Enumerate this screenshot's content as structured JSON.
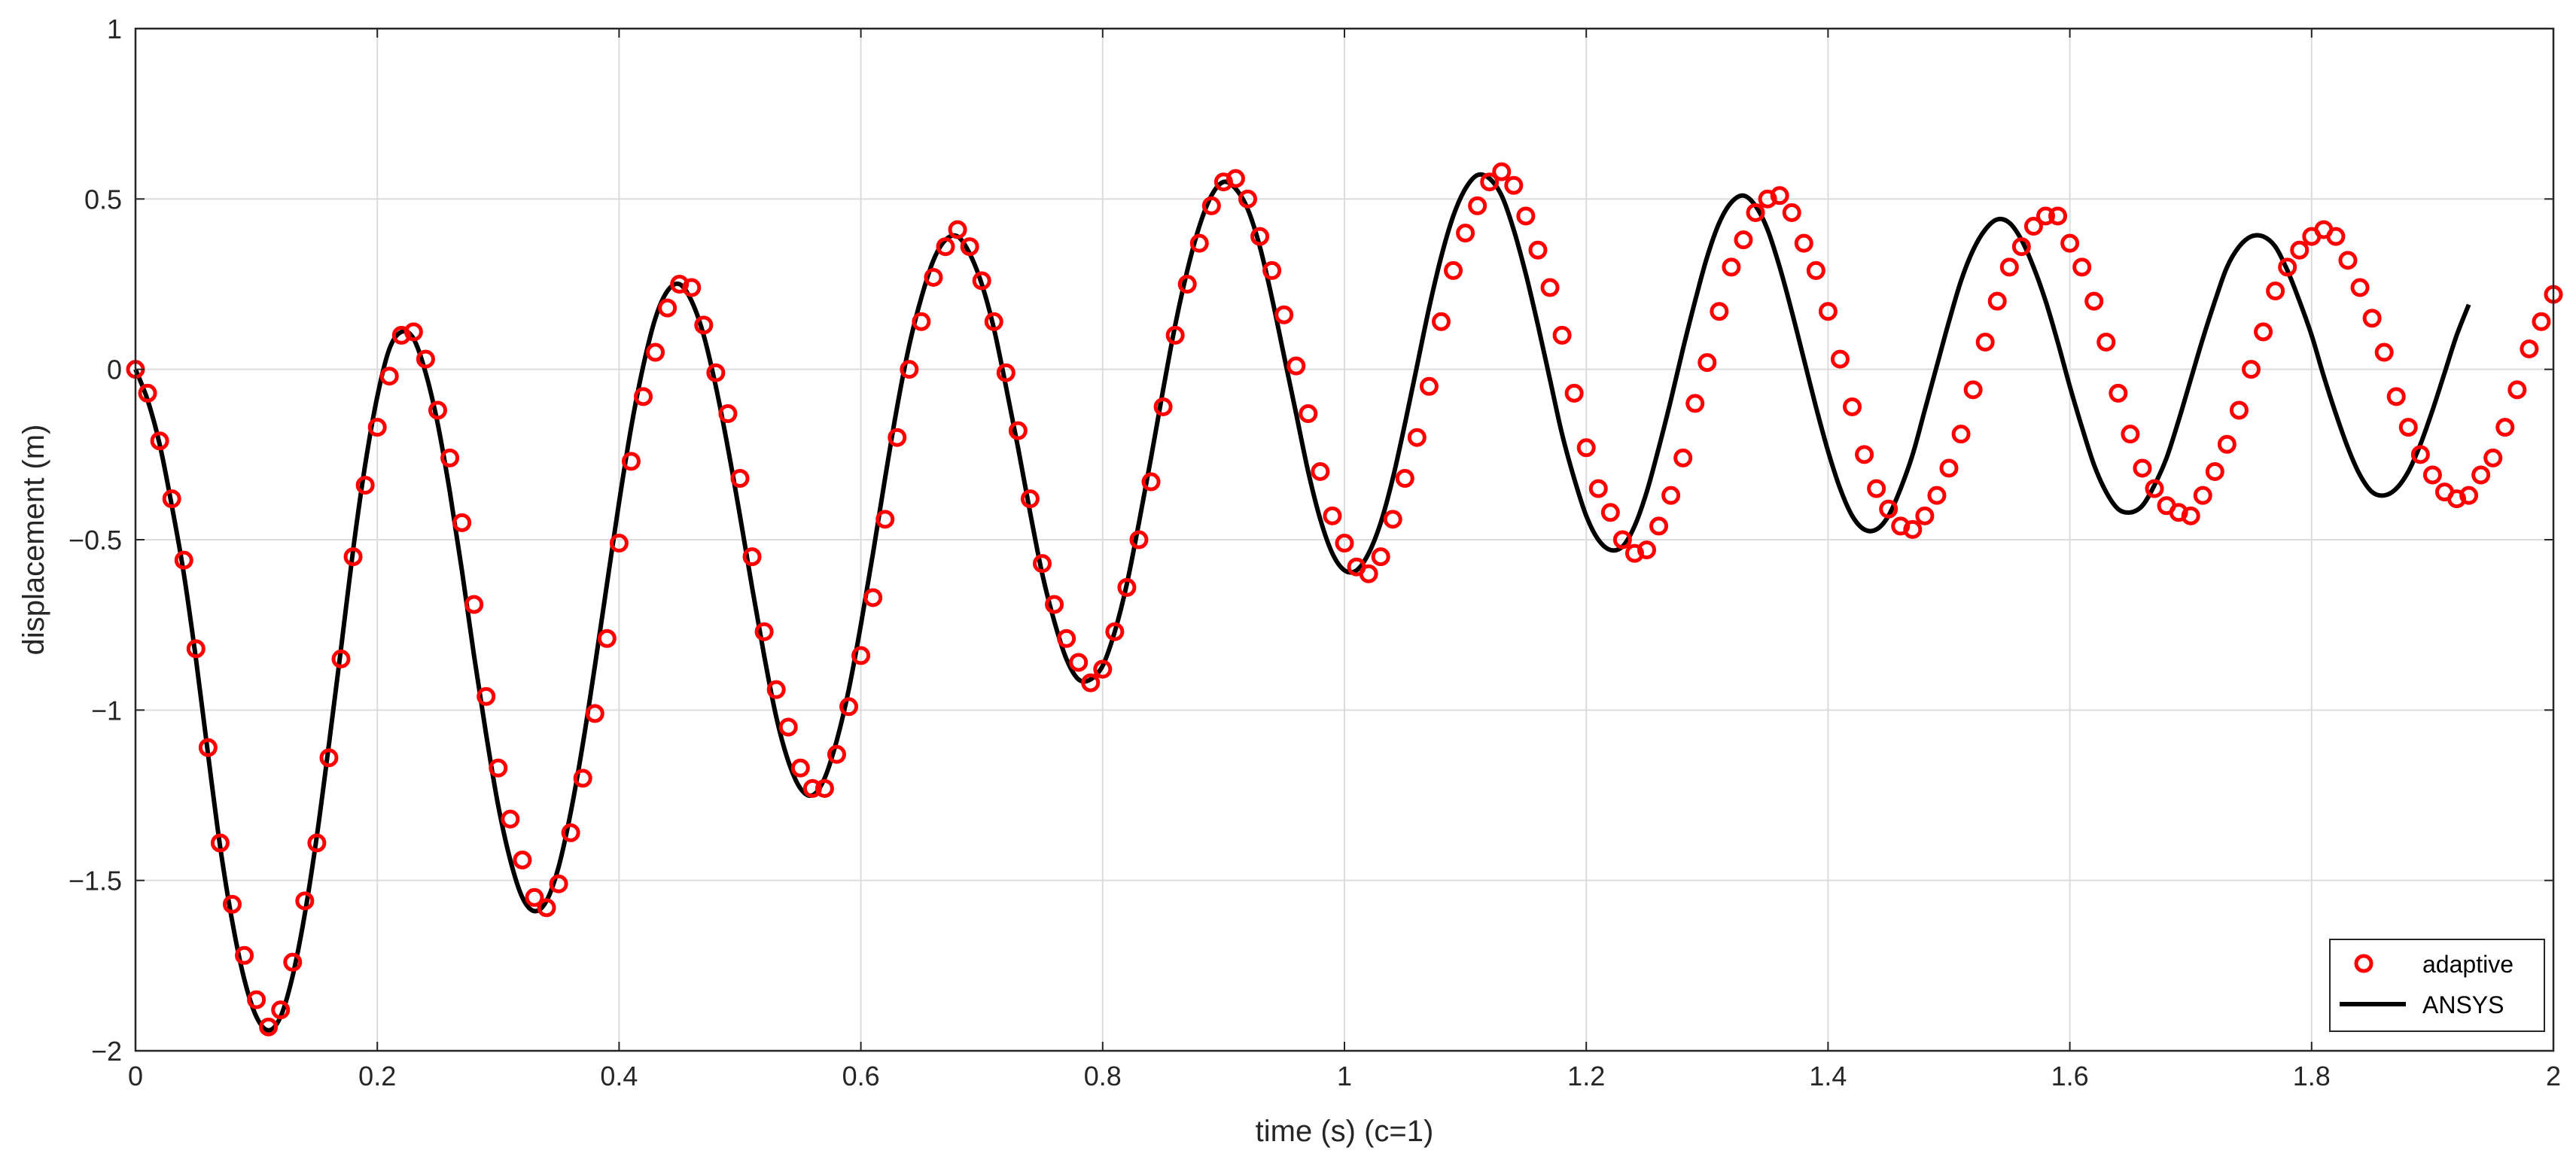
{
  "chart_data": {
    "type": "line",
    "title": "",
    "xlabel": "time (s) (c=1)",
    "ylabel": "displacement (m)",
    "xlim": [
      0,
      2
    ],
    "ylim": [
      -2,
      1
    ],
    "xticks": [
      0,
      0.2,
      0.4,
      0.6,
      0.8,
      1,
      1.2,
      1.4,
      1.6,
      1.8,
      2
    ],
    "xtick_labels": [
      "0",
      "0.2",
      "0.4",
      "0.6",
      "0.8",
      "1",
      "1.2",
      "1.4",
      "1.6",
      "1.8",
      "2"
    ],
    "yticks": [
      1,
      0.5,
      0,
      -0.5,
      -1,
      -1.5,
      -2
    ],
    "ytick_labels": [
      "1",
      "0.5",
      "0",
      "−0.5",
      "−1",
      "−1.5",
      "−2"
    ],
    "grid": true,
    "legend_position": "bottom-right",
    "series": [
      {
        "name": "adaptive",
        "style": "markers",
        "marker": "circle",
        "color": "#ff0000",
        "x_start": 0,
        "x_step": 0.01,
        "values": [
          0.0,
          -0.07,
          -0.21,
          -0.38,
          -0.56,
          -0.82,
          -1.11,
          -1.39,
          -1.57,
          -1.72,
          -1.85,
          -1.93,
          -1.88,
          -1.74,
          -1.56,
          -1.39,
          -1.14,
          -0.85,
          -0.55,
          -0.34,
          -0.17,
          -0.02,
          0.1,
          0.11,
          0.03,
          -0.12,
          -0.26,
          -0.45,
          -0.69,
          -0.96,
          -1.17,
          -1.32,
          -1.44,
          -1.55,
          -1.58,
          -1.51,
          -1.36,
          -1.2,
          -1.01,
          -0.79,
          -0.51,
          -0.27,
          -0.08,
          0.05,
          0.18,
          0.25,
          0.24,
          0.13,
          -0.01,
          -0.13,
          -0.32,
          -0.55,
          -0.77,
          -0.94,
          -1.05,
          -1.17,
          -1.23,
          -1.23,
          -1.13,
          -0.99,
          -0.84,
          -0.67,
          -0.44,
          -0.2,
          0.0,
          0.14,
          0.27,
          0.36,
          0.41,
          0.36,
          0.26,
          0.14,
          -0.01,
          -0.18,
          -0.38,
          -0.57,
          -0.69,
          -0.79,
          -0.86,
          -0.92,
          -0.88,
          -0.77,
          -0.64,
          -0.5,
          -0.33,
          -0.11,
          0.1,
          0.25,
          0.37,
          0.48,
          0.55,
          0.56,
          0.5,
          0.39,
          0.29,
          0.16,
          0.01,
          -0.13,
          -0.3,
          -0.43,
          -0.51,
          -0.58,
          -0.6,
          -0.55,
          -0.44,
          -0.32,
          -0.2,
          -0.05,
          0.14,
          0.29,
          0.4,
          0.48,
          0.55,
          0.58,
          0.54,
          0.45,
          0.35,
          0.24,
          0.1,
          -0.07,
          -0.23,
          -0.35,
          -0.42,
          -0.5,
          -0.54,
          -0.53,
          -0.46,
          -0.37,
          -0.26,
          -0.1,
          0.02,
          0.17,
          0.3,
          0.38,
          0.46,
          0.5,
          0.51,
          0.46,
          0.37,
          0.29,
          0.17,
          0.03,
          -0.11,
          -0.25,
          -0.35,
          -0.41,
          -0.46,
          -0.47,
          -0.43,
          -0.37,
          -0.29,
          -0.19,
          -0.06,
          0.08,
          0.2,
          0.3,
          0.36,
          0.42,
          0.45,
          0.45,
          0.37,
          0.3,
          0.2,
          0.08,
          -0.07,
          -0.19,
          -0.29,
          -0.35,
          -0.4,
          -0.42,
          -0.43,
          -0.37,
          -0.3,
          -0.22,
          -0.12,
          0.0,
          0.11,
          0.23,
          0.3,
          0.35,
          0.39,
          0.41,
          0.39,
          0.32,
          0.24,
          0.15,
          0.05,
          -0.08,
          -0.17,
          -0.25,
          -0.31,
          -0.36,
          -0.38,
          -0.37,
          -0.31,
          -0.26,
          -0.17,
          -0.06,
          0.06,
          0.14,
          0.22
        ]
      },
      {
        "name": "ANSYS",
        "style": "line",
        "color": "#000000",
        "x_start": 0,
        "x_step": 0.01,
        "values": [
          0.0,
          -0.09,
          -0.22,
          -0.4,
          -0.6,
          -0.85,
          -1.13,
          -1.4,
          -1.62,
          -1.79,
          -1.9,
          -1.94,
          -1.9,
          -1.78,
          -1.6,
          -1.37,
          -1.1,
          -0.82,
          -0.53,
          -0.28,
          -0.08,
          0.06,
          0.11,
          0.09,
          -0.01,
          -0.16,
          -0.36,
          -0.59,
          -0.84,
          -1.07,
          -1.28,
          -1.44,
          -1.55,
          -1.59,
          -1.56,
          -1.46,
          -1.3,
          -1.1,
          -0.87,
          -0.63,
          -0.39,
          -0.17,
          0.01,
          0.15,
          0.23,
          0.25,
          0.2,
          0.1,
          -0.05,
          -0.23,
          -0.43,
          -0.64,
          -0.84,
          -1.02,
          -1.15,
          -1.23,
          -1.25,
          -1.2,
          -1.09,
          -0.94,
          -0.75,
          -0.54,
          -0.32,
          -0.11,
          0.07,
          0.21,
          0.32,
          0.38,
          0.39,
          0.34,
          0.25,
          0.12,
          -0.05,
          -0.23,
          -0.42,
          -0.6,
          -0.74,
          -0.85,
          -0.91,
          -0.91,
          -0.87,
          -0.77,
          -0.63,
          -0.45,
          -0.26,
          -0.06,
          0.13,
          0.29,
          0.42,
          0.51,
          0.55,
          0.53,
          0.47,
          0.36,
          0.21,
          0.04,
          -0.13,
          -0.3,
          -0.44,
          -0.54,
          -0.59,
          -0.59,
          -0.54,
          -0.45,
          -0.32,
          -0.16,
          0.01,
          0.18,
          0.33,
          0.45,
          0.53,
          0.57,
          0.56,
          0.51,
          0.41,
          0.28,
          0.13,
          -0.03,
          -0.19,
          -0.32,
          -0.43,
          -0.5,
          -0.53,
          -0.52,
          -0.46,
          -0.36,
          -0.23,
          -0.09,
          0.06,
          0.2,
          0.33,
          0.43,
          0.49,
          0.51,
          0.48,
          0.41,
          0.3,
          0.17,
          0.03,
          -0.11,
          -0.24,
          -0.35,
          -0.43,
          -0.47,
          -0.47,
          -0.43,
          -0.35,
          -0.25,
          -0.12,
          0.01,
          0.14,
          0.26,
          0.35,
          0.41,
          0.44,
          0.43,
          0.38,
          0.3,
          0.2,
          0.08,
          -0.05,
          -0.17,
          -0.28,
          -0.36,
          -0.41,
          -0.42,
          -0.4,
          -0.34,
          -0.26,
          -0.15,
          -0.03,
          0.09,
          0.2,
          0.3,
          0.36,
          0.39,
          0.39,
          0.36,
          0.29,
          0.2,
          0.1,
          -0.02,
          -0.13,
          -0.23,
          -0.31,
          -0.36,
          -0.37,
          -0.35,
          -0.3,
          -0.22,
          -0.12,
          -0.01,
          0.1,
          0.19
        ]
      }
    ]
  }
}
